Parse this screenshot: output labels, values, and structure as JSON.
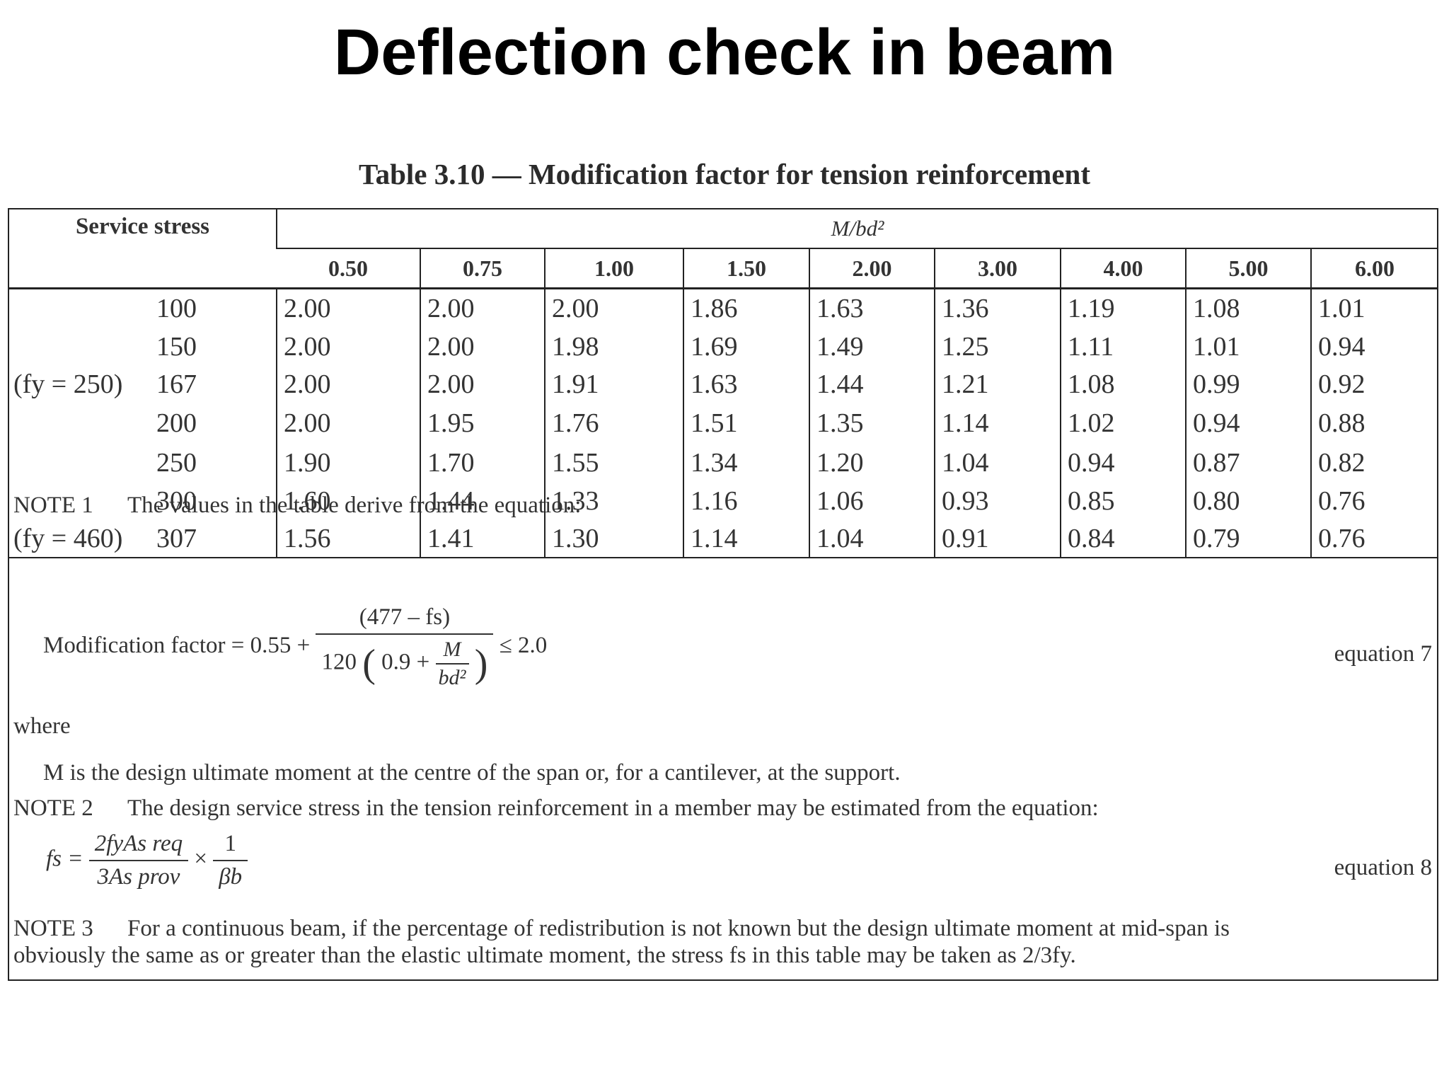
{
  "slide_title": "Deflection check in beam",
  "table": {
    "caption": "Table 3.10 — Modification factor for tension reinforcement",
    "row_header_label": "Service stress",
    "column_group_label": "M/bd²",
    "columns": [
      "0.50",
      "0.75",
      "1.00",
      "1.50",
      "2.00",
      "3.00",
      "4.00",
      "5.00",
      "6.00"
    ],
    "rows": [
      {
        "stress": "100",
        "fy_note": "",
        "values": [
          "2.00",
          "2.00",
          "2.00",
          "1.86",
          "1.63",
          "1.36",
          "1.19",
          "1.08",
          "1.01"
        ]
      },
      {
        "stress": "150",
        "fy_note": "",
        "values": [
          "2.00",
          "2.00",
          "1.98",
          "1.69",
          "1.49",
          "1.25",
          "1.11",
          "1.01",
          "0.94"
        ]
      },
      {
        "stress": "167",
        "fy_note": "(fy = 250)",
        "values": [
          "2.00",
          "2.00",
          "1.91",
          "1.63",
          "1.44",
          "1.21",
          "1.08",
          "0.99",
          "0.92"
        ]
      },
      {
        "stress": "200",
        "fy_note": "",
        "values": [
          "2.00",
          "1.95",
          "1.76",
          "1.51",
          "1.35",
          "1.14",
          "1.02",
          "0.94",
          "0.88"
        ]
      },
      {
        "stress": "250",
        "fy_note": "",
        "values": [
          "1.90",
          "1.70",
          "1.55",
          "1.34",
          "1.20",
          "1.04",
          "0.94",
          "0.87",
          "0.82"
        ]
      },
      {
        "stress": "300",
        "fy_note": "",
        "values": [
          "1.60",
          "1.44",
          "1.33",
          "1.16",
          "1.06",
          "0.93",
          "0.85",
          "0.80",
          "0.76"
        ]
      },
      {
        "stress": "307",
        "fy_note": "(fy = 460)",
        "values": [
          "1.56",
          "1.41",
          "1.30",
          "1.14",
          "1.04",
          "0.91",
          "0.84",
          "0.79",
          "0.76"
        ]
      }
    ]
  },
  "notes": {
    "note1_label": "NOTE 1",
    "note1_text": "The values in the table derive from the equation:",
    "eq1_lhs": "Modification factor = 0.55 +",
    "eq1_numerator": "(477 – fs)",
    "eq1_denominator_prefix": "120",
    "eq1_denominator_inner": "0.9 +",
    "eq1_inner_num": "M",
    "eq1_inner_den": "bd²",
    "eq1_rhs": "≤ 2.0",
    "eq1_label": "equation 7",
    "where": "where",
    "m_definition": "M is the design ultimate moment at the centre of the span or, for a cantilever, at the support.",
    "note2_label": "NOTE 2",
    "note2_text": "The design service stress in the tension reinforcement in a member may be estimated from the equation:",
    "eq2_lhs": "fs =",
    "eq2_num": "2fyAs req",
    "eq2_den": "3As prov",
    "eq2_times": "×",
    "eq2_num2": "1",
    "eq2_den2": "βb",
    "eq2_label": "equation 8",
    "note3_label": "NOTE 3",
    "note3_text_line1": "For a continuous beam, if the percentage of redistribution is not known but the design ultimate moment at mid-span is",
    "note3_text_line2": "obviously the same as or greater than the elastic ultimate moment, the stress fs in this table may be taken as 2/3fy."
  }
}
